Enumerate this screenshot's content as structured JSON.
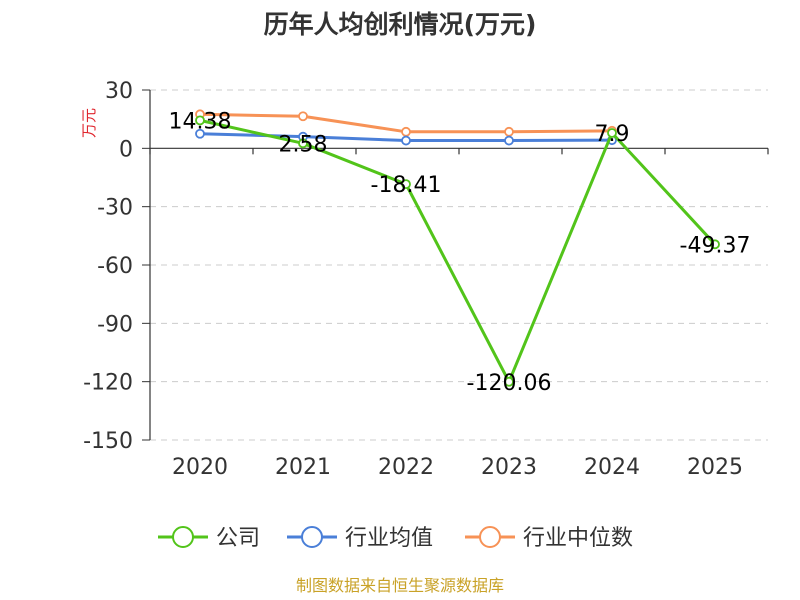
{
  "chart_data": {
    "type": "line",
    "title": "历年人均创利情况(万元)",
    "ylabel": "万元",
    "xlabel": "",
    "categories": [
      "2020",
      "2021",
      "2022",
      "2023",
      "2024",
      "2025"
    ],
    "ylim": [
      -150,
      30
    ],
    "yticks": [
      30,
      0,
      -30,
      -60,
      -90,
      -120,
      -150
    ],
    "grid": true,
    "legend_position": "bottom",
    "series": [
      {
        "name": "公司",
        "color": "#52c41a",
        "values": [
          14.38,
          2.58,
          -18.41,
          -120.06,
          7.9,
          -49.37
        ],
        "labels": [
          "14.38",
          "2.58",
          "-18.41",
          "-120.06",
          "7.9",
          "-49.37"
        ]
      },
      {
        "name": "行业均值",
        "color": "#4a7fd8",
        "values": [
          7.5,
          6.0,
          4.0,
          4.0,
          4.2,
          null
        ]
      },
      {
        "name": "行业中位数",
        "color": "#f79256",
        "values": [
          17.5,
          16.5,
          8.5,
          8.5,
          9.0,
          null
        ]
      }
    ]
  },
  "source": "制图数据来自恒生聚源数据库"
}
